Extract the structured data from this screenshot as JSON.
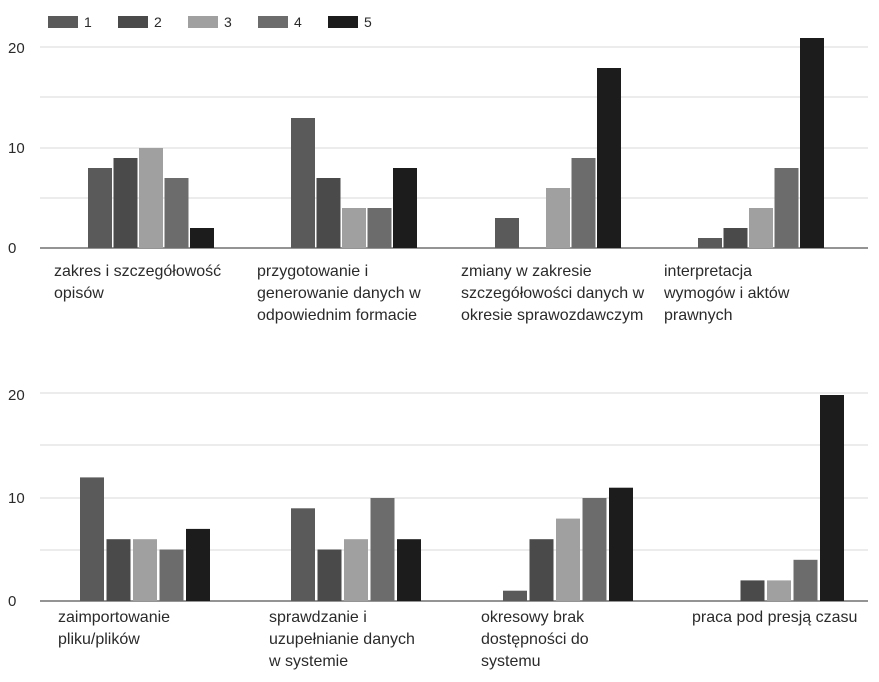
{
  "chart_data": [
    {
      "type": "bar",
      "legend": [
        {
          "name": "1",
          "color": "#5a5a5a"
        },
        {
          "name": "2",
          "color": "#4a4a4a"
        },
        {
          "name": "3",
          "color": "#a0a0a0"
        },
        {
          "name": "4",
          "color": "#6c6c6c"
        },
        {
          "name": "5",
          "color": "#1c1c1c"
        }
      ],
      "legend_position": "top-left",
      "grid": true,
      "ylim": [
        0,
        20
      ],
      "y_ticks": [
        "0",
        "10",
        "20"
      ],
      "categories": [
        [
          "zakres i szczegółowość",
          "opisów"
        ],
        [
          "przygotowanie i",
          "generowanie danych w",
          "odpowiednim formacie"
        ],
        [
          "zmiany w zakresie",
          "szczegółowości danych w",
          "okresie sprawozdawczym"
        ],
        [
          "interpretacja",
          "wymogów i aktów",
          "prawnych"
        ]
      ],
      "series": [
        {
          "name": "1",
          "values": [
            8,
            13,
            3,
            1
          ]
        },
        {
          "name": "2",
          "values": [
            9,
            7,
            0,
            2
          ]
        },
        {
          "name": "3",
          "values": [
            10,
            4,
            6,
            4
          ]
        },
        {
          "name": "4",
          "values": [
            7,
            4,
            9,
            8
          ]
        },
        {
          "name": "5",
          "values": [
            2,
            8,
            18,
            21
          ]
        }
      ]
    },
    {
      "type": "bar",
      "grid": true,
      "ylim": [
        0,
        20
      ],
      "y_ticks": [
        "0",
        "10",
        "20"
      ],
      "categories": [
        [
          "zaimportowanie",
          "pliku/plików"
        ],
        [
          "sprawdzanie i",
          "uzupełnianie danych",
          "w systemie"
        ],
        [
          "okresowy brak",
          "dostępności do",
          "systemu"
        ],
        [
          "praca pod presją czasu"
        ]
      ],
      "series": [
        {
          "name": "1",
          "values": [
            12,
            9,
            1,
            0
          ]
        },
        {
          "name": "2",
          "values": [
            6,
            5,
            6,
            2
          ]
        },
        {
          "name": "3",
          "values": [
            6,
            6,
            8,
            2
          ]
        },
        {
          "name": "4",
          "values": [
            5,
            10,
            10,
            4
          ]
        },
        {
          "name": "5",
          "values": [
            7,
            6,
            11,
            20
          ]
        }
      ]
    }
  ]
}
